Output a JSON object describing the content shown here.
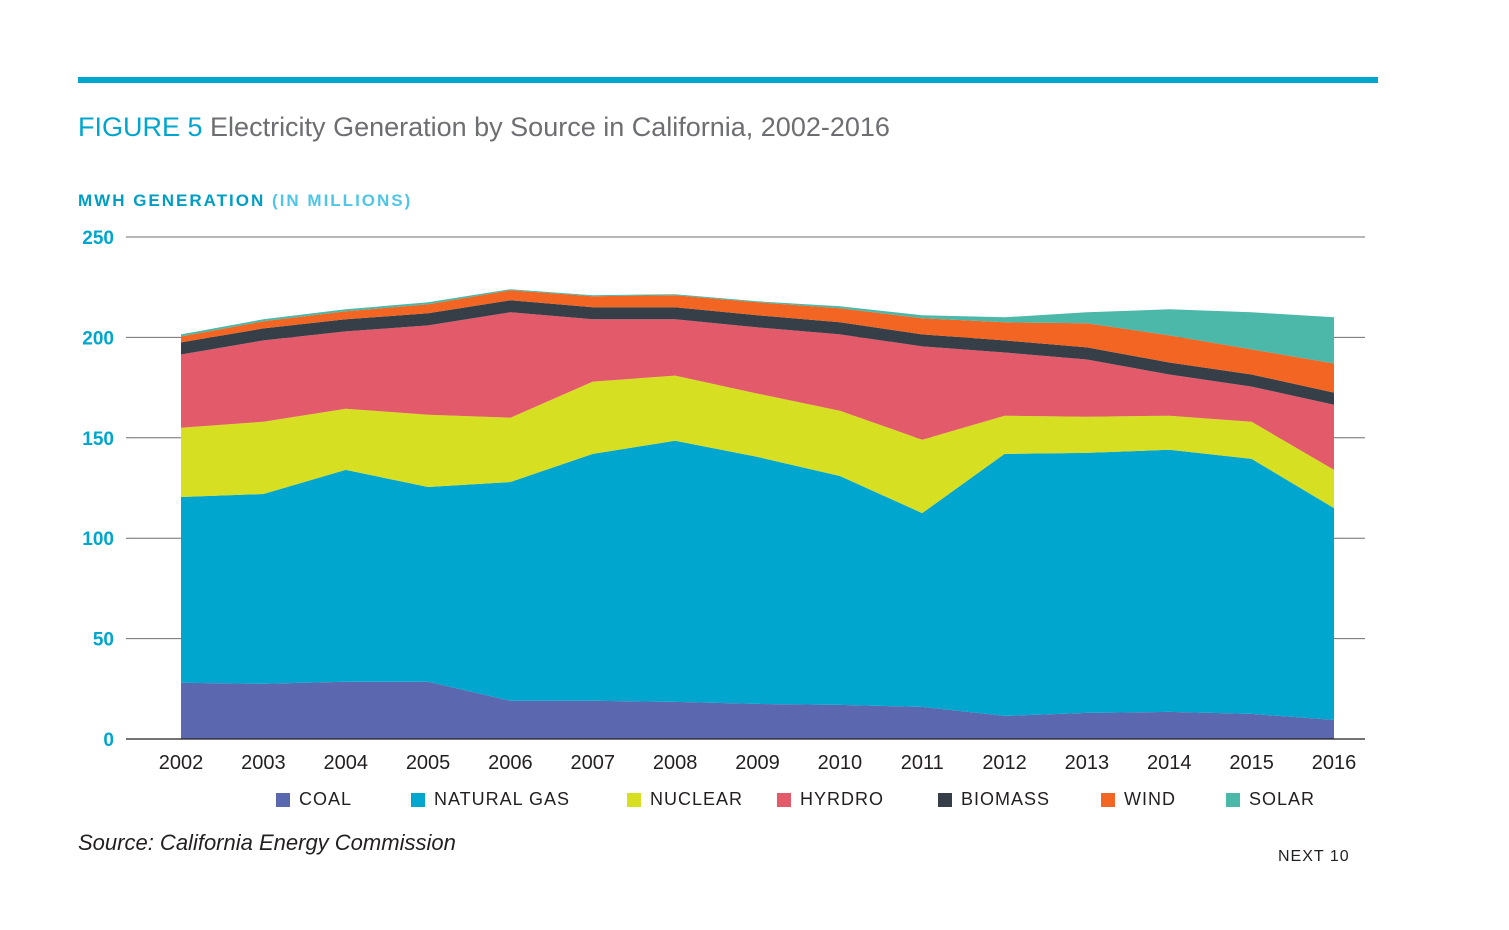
{
  "header": {
    "figure_label": "FIGURE 5",
    "figure_title": "Electricity Generation by Source in California, 2002-2016"
  },
  "axis_title": {
    "main": "MWH GENERATION",
    "unit": "(IN MILLIONS)"
  },
  "footer": {
    "source": "Source: California Energy Commission",
    "brand": "NEXT 10"
  },
  "colors": {
    "accent": "#00A6CE",
    "tick_label": "#00A6CE"
  },
  "chart_data": {
    "type": "area",
    "stacked": true,
    "title": "Electricity Generation by Source in California, 2002-2016",
    "ylabel": "MWH GENERATION (IN MILLIONS)",
    "xlabel": "",
    "ylim": [
      0,
      250
    ],
    "yticks": [
      0,
      50,
      100,
      150,
      200,
      250
    ],
    "grid": true,
    "legend_position": "bottom",
    "x": [
      "2002",
      "2003",
      "2004",
      "2005",
      "2006",
      "2007",
      "2008",
      "2009",
      "2010",
      "2011",
      "2012",
      "2013",
      "2014",
      "2015",
      "2016"
    ],
    "series": [
      {
        "name": "COAL",
        "color": "#5B67AE",
        "values": [
          28,
          27.5,
          28.5,
          28.5,
          19,
          19,
          18.5,
          17.5,
          17,
          16,
          11.5,
          13,
          13.5,
          12.5,
          9.5
        ]
      },
      {
        "name": "NATURAL GAS",
        "color": "#00A6CE",
        "values": [
          92.5,
          94.5,
          105.5,
          97,
          109,
          123,
          130,
          123,
          114,
          96.5,
          130.5,
          129.5,
          130.5,
          127,
          105.5
        ]
      },
      {
        "name": "NUCLEAR",
        "color": "#D6DF22",
        "values": [
          34.5,
          36,
          30.5,
          36,
          32,
          36,
          32.5,
          31.5,
          32.5,
          36.5,
          19,
          18,
          17,
          18.5,
          19
        ]
      },
      {
        "name": "HYRDRO",
        "color": "#E35A6A",
        "values": [
          36.5,
          40.5,
          38.5,
          44.5,
          52.5,
          31,
          28,
          33,
          38,
          46.5,
          31.5,
          28.5,
          20.5,
          17.5,
          32.5
        ]
      },
      {
        "name": "BIOMASS",
        "color": "#363E48",
        "values": [
          6,
          6,
          6,
          6,
          6,
          6,
          6,
          6,
          6,
          6,
          6,
          6,
          6,
          6,
          6
        ]
      },
      {
        "name": "WIND",
        "color": "#F26522",
        "values": [
          3,
          3.5,
          4,
          4.5,
          5,
          5.5,
          6,
          6.5,
          7,
          8,
          9,
          12,
          13.5,
          12.5,
          14.5
        ]
      },
      {
        "name": "SOLAR",
        "color": "#4BB8A9",
        "values": [
          1,
          1,
          1,
          1,
          0.5,
          0.5,
          0.5,
          0.5,
          1,
          1.5,
          2.5,
          5.5,
          13,
          18.5,
          23
        ]
      }
    ]
  }
}
